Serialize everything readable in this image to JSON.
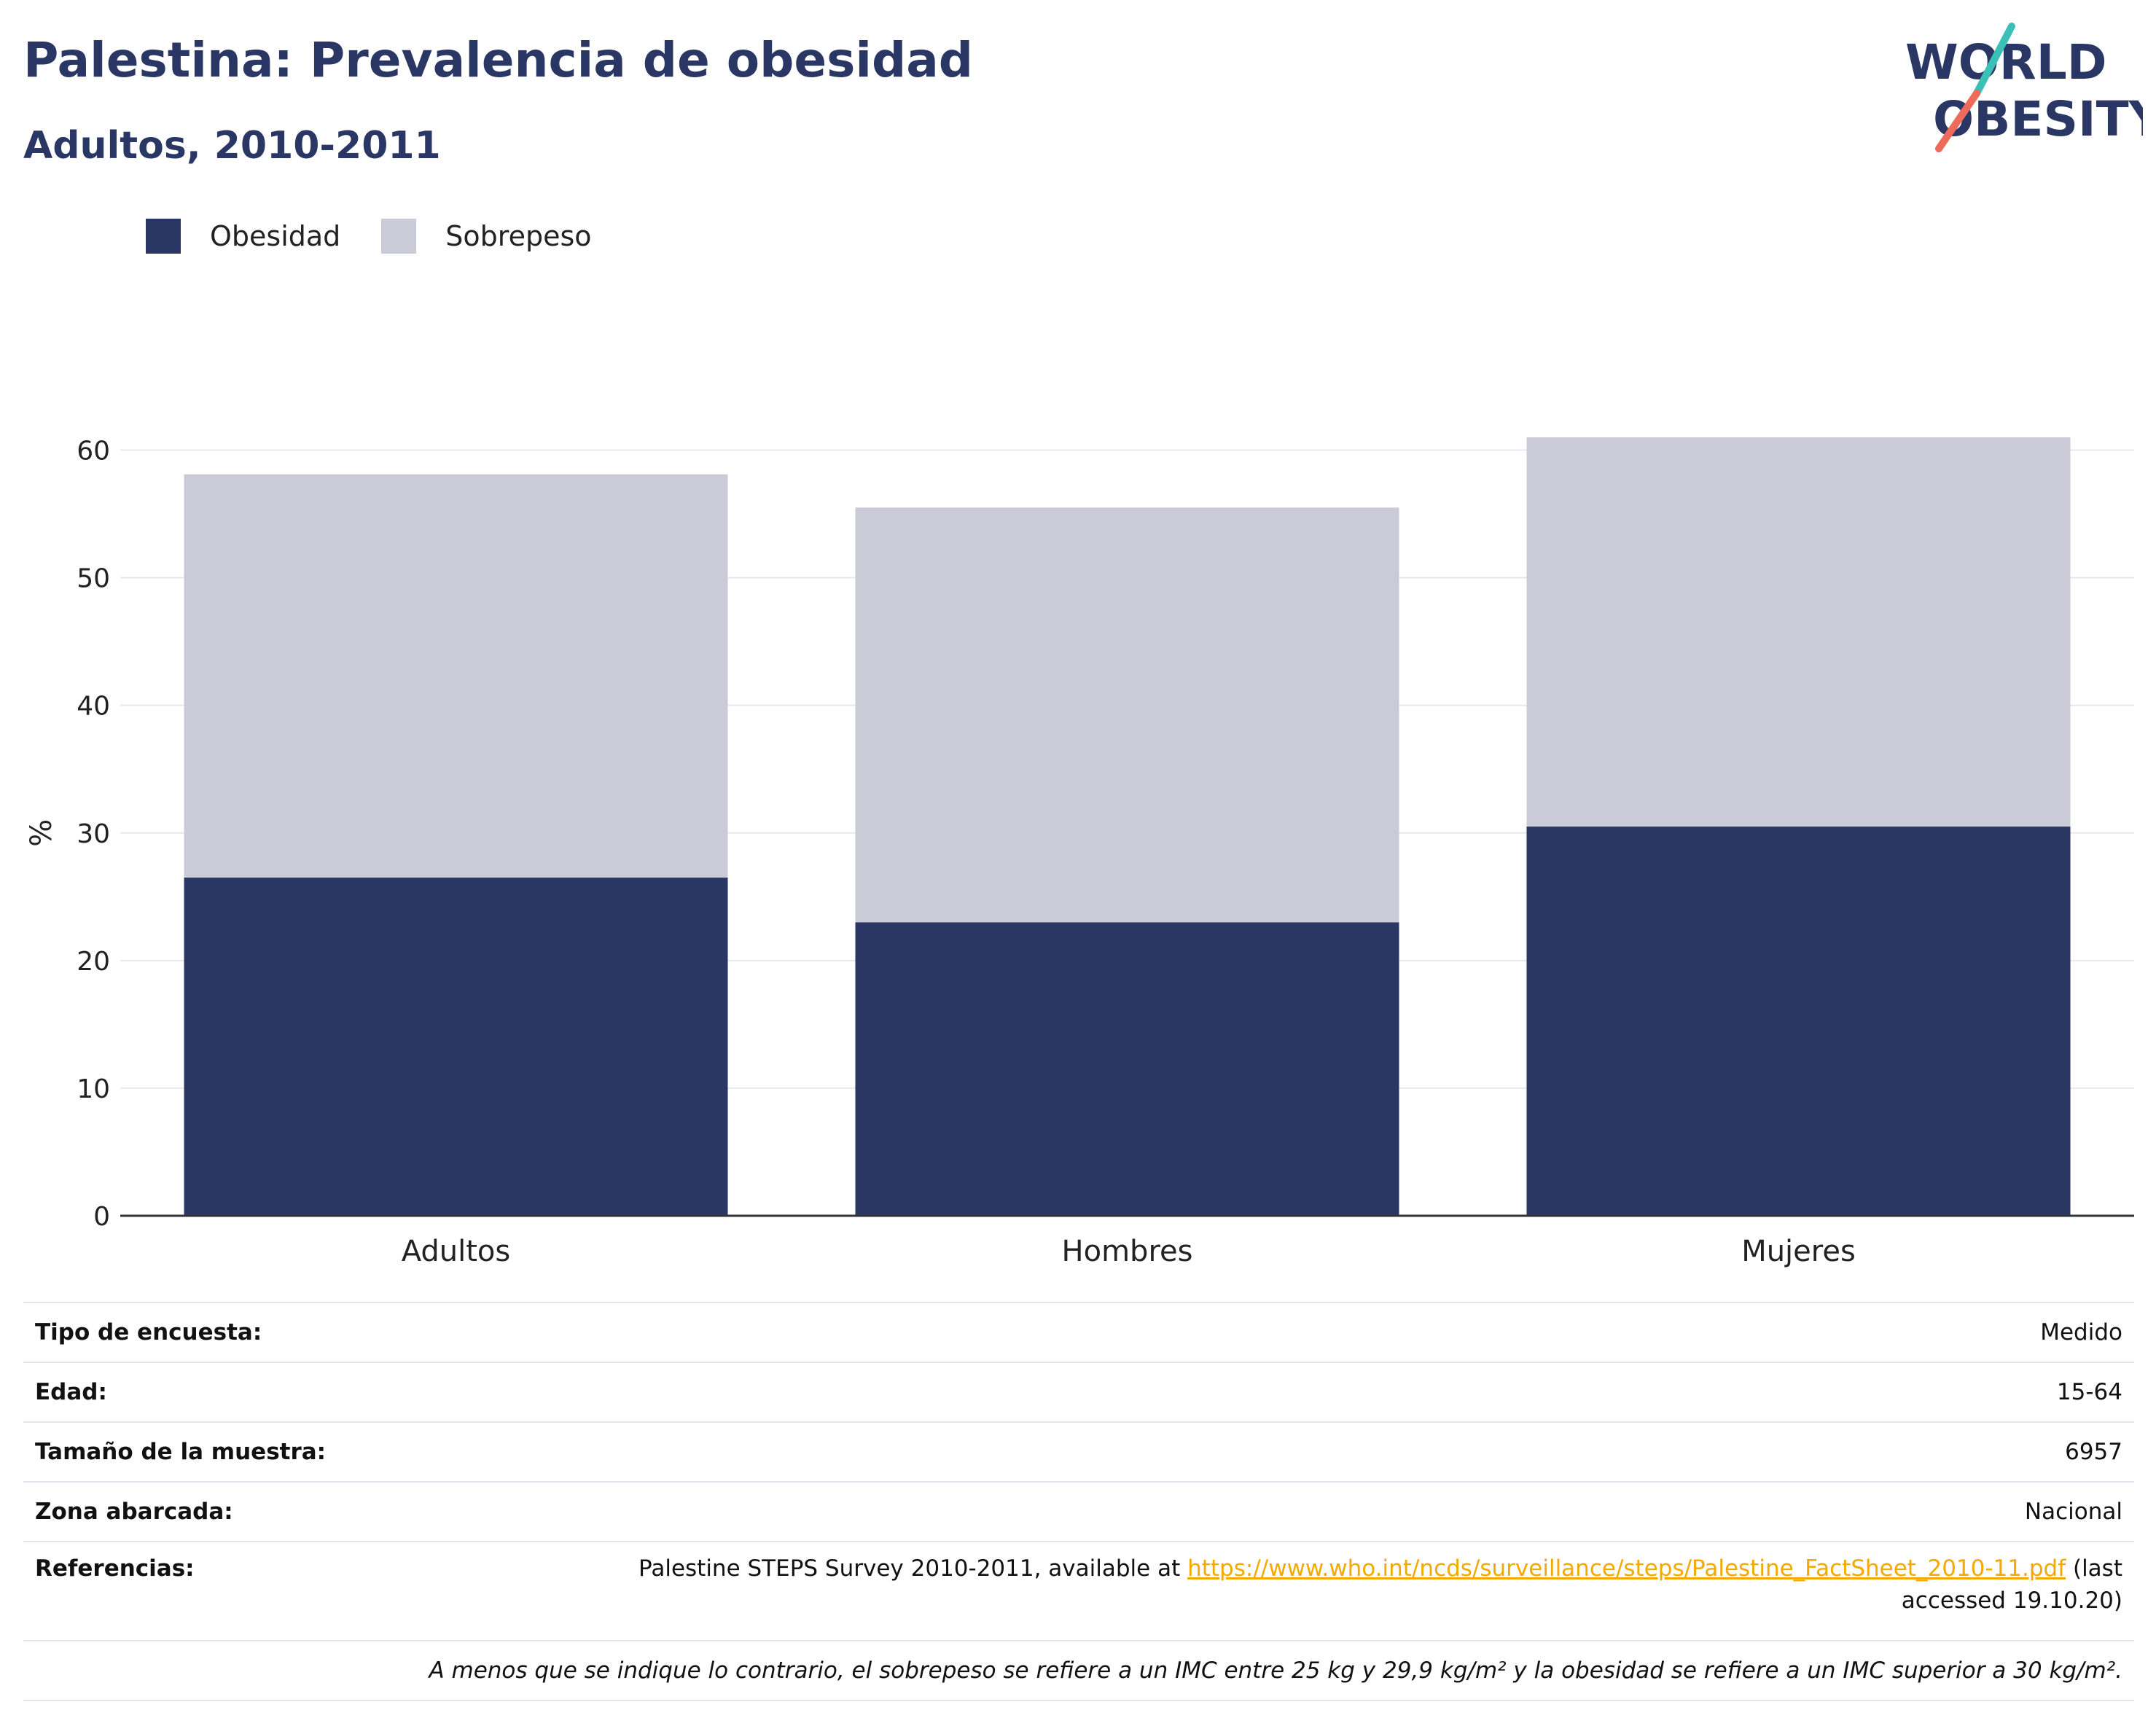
{
  "header": {
    "title": "Palestina: Prevalencia de obesidad",
    "subtitle": "Adultos, 2010-2011"
  },
  "logo": {
    "line1": "WORLD",
    "line2": "OBESITY",
    "colors": {
      "text": "#2a3765",
      "slash_top": "#3bbfb7",
      "slash_bottom": "#ee6a5b"
    }
  },
  "colors": {
    "obesity": "#2a3765",
    "overweight": "#cacbd7",
    "grid": "#e6e8f0",
    "axis": "#333333",
    "link": "#f2a900"
  },
  "legend": {
    "items": [
      {
        "label": "Obesidad",
        "color": "#2a3765"
      },
      {
        "label": "Sobrepeso",
        "color": "#cacbd7"
      }
    ],
    "placement": "top-left"
  },
  "chart_data": {
    "type": "bar",
    "stacked": true,
    "categories": [
      "Adultos",
      "Hombres",
      "Mujeres"
    ],
    "series": [
      {
        "name": "Obesidad",
        "values": [
          26.5,
          23.0,
          30.5
        ],
        "color": "#2a3765"
      },
      {
        "name": "Sobrepeso",
        "values": [
          31.6,
          32.5,
          30.5
        ],
        "color": "#cacbd7"
      }
    ],
    "totals": [
      58.1,
      55.5,
      61.0
    ],
    "ylabel": "%",
    "xlabel": "",
    "ylim": [
      0,
      65
    ],
    "yticks": [
      0,
      10,
      20,
      30,
      40,
      50,
      60
    ],
    "grid": true
  },
  "info": {
    "rows": [
      {
        "key": "Tipo de encuesta:",
        "value": "Medido"
      },
      {
        "key": "Edad:",
        "value": "15-64"
      },
      {
        "key": "Tamaño de la muestra:",
        "value": "6957"
      },
      {
        "key": "Zona abarcada:",
        "value": "Nacional"
      }
    ],
    "references": {
      "key": "Referencias:",
      "text_before": "Palestine STEPS Survey 2010-2011, available at ",
      "link": "https://www.who.int/ncds/surveillance/steps/Palestine_FactSheet_2010-11.pdf",
      "text_after": " (last",
      "text_line2": "accessed 19.10.20)"
    },
    "note": "A menos que se indique lo contrario, el sobrepeso se refiere a un IMC entre 25 kg y 29,9 kg/m² y la obesidad se refiere a un IMC superior a 30 kg/m²."
  }
}
